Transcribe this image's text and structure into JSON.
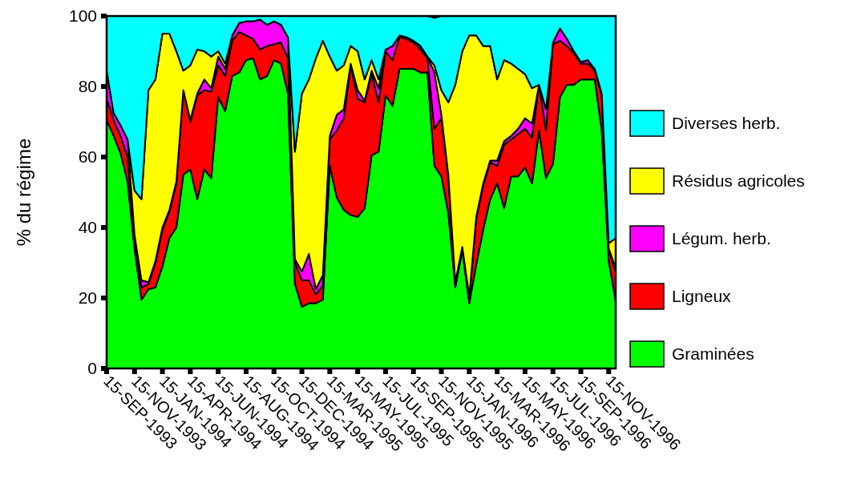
{
  "chart_data": {
    "type": "area",
    "stacked": true,
    "ylabel": "% du régime",
    "ylim": [
      0,
      100
    ],
    "yticks": [
      0,
      20,
      40,
      60,
      80,
      100
    ],
    "grid": false,
    "legend": "right",
    "categories": [
      "15-SEP-1993",
      null,
      null,
      null,
      "15-NOV-1993",
      null,
      null,
      null,
      "15-JAN-1994",
      null,
      null,
      null,
      "15-APR-1994",
      null,
      null,
      null,
      "15-JUN-1994",
      null,
      null,
      null,
      "15-AUG-1994",
      null,
      null,
      null,
      "15-OCT-1994",
      null,
      null,
      null,
      "15-DEC-1994",
      null,
      null,
      null,
      "15-MAR-1995",
      null,
      null,
      null,
      "15-MAY-1995",
      null,
      null,
      null,
      "15-JUL-1995",
      null,
      null,
      null,
      "15-SEP-1995",
      null,
      null,
      null,
      "15-NOV-1995",
      null,
      null,
      null,
      "15-JAN-1996",
      null,
      null,
      null,
      "15-MAR-1996",
      null,
      null,
      null,
      "15-MAY-1996",
      null,
      null,
      null,
      "15-JUL-1996",
      null,
      null,
      null,
      "15-SEP-1996",
      null,
      null,
      null,
      "15-NOV-1996",
      null
    ],
    "series": [
      {
        "name": "Graminées",
        "color": "#00ff00",
        "values": [
          70.5,
          66,
          61,
          53,
          34,
          19.5,
          22.5,
          23,
          29,
          37,
          40,
          55,
          56.5,
          48,
          56.5,
          54,
          77,
          73,
          83,
          84,
          87.5,
          88,
          82,
          83,
          87.5,
          86.5,
          78,
          24,
          17.5,
          18.5,
          18.5,
          19.5,
          57.5,
          48.5,
          45,
          43.5,
          43,
          45.5,
          60.5,
          61.5,
          77.5,
          74.5,
          85,
          85,
          85,
          84,
          84,
          57.5,
          54.5,
          44,
          23,
          33.5,
          18.5,
          29.5,
          39.5,
          48,
          52.5,
          45.5,
          54.5,
          54.5,
          57,
          52.5,
          67.5,
          54,
          58,
          77,
          80.5,
          80.5,
          82,
          82,
          82,
          67.5,
          30.5,
          19
        ]
      },
      {
        "name": "Ligneux",
        "color": "#ff0000",
        "values": [
          6,
          4.5,
          5,
          7,
          3,
          3.5,
          1.5,
          7,
          10.5,
          7.5,
          12.5,
          24,
          13.5,
          29.5,
          22.5,
          24.5,
          9,
          10,
          10,
          11.5,
          7,
          5.5,
          8.5,
          8.5,
          4.5,
          6,
          10,
          6,
          7.5,
          6.5,
          2.5,
          4,
          7.5,
          19,
          26,
          42.5,
          33.5,
          30,
          23,
          14,
          12.5,
          13,
          9,
          8.5,
          7.5,
          6.5,
          4,
          10.5,
          16.5,
          10,
          1,
          0.5,
          1.5,
          13,
          12.5,
          10.5,
          5,
          18,
          10.5,
          12,
          11,
          13,
          13,
          13.5,
          34,
          16,
          11,
          9,
          4.5,
          4.5,
          2.5,
          10,
          3,
          8.5
        ]
      },
      {
        "name": "Légum. herb.",
        "color": "#ff00ff",
        "values": [
          8,
          2,
          3,
          5,
          1,
          2,
          0.5,
          0.5,
          0.5,
          0.5,
          0.5,
          0,
          0.5,
          0.5,
          3,
          1,
          2.5,
          2,
          1.5,
          2.5,
          4,
          5,
          8.5,
          6,
          6.5,
          5,
          6,
          1,
          2.5,
          7.5,
          1.5,
          3,
          1,
          4.5,
          2.5,
          0.5,
          2.5,
          0.5,
          1,
          4,
          0.5,
          4,
          0.5,
          0.5,
          0.5,
          1,
          0.5,
          16,
          1,
          1,
          0.5,
          0.5,
          0.5,
          0.5,
          0.5,
          0.5,
          1.5,
          1,
          1,
          1.5,
          3,
          4,
          0,
          6,
          0.5,
          3.5,
          2,
          0.5,
          0.5,
          1,
          0.5,
          0.5,
          0.5,
          1
        ]
      },
      {
        "name": "Résidus agricoles",
        "color": "#ffff00",
        "values": [
          0,
          0,
          0,
          0,
          12.5,
          23,
          54.5,
          51.5,
          55,
          50,
          37,
          5.5,
          15.5,
          12.5,
          8,
          9,
          1.5,
          1.5,
          0,
          0,
          0,
          0,
          0,
          0,
          0,
          0,
          0,
          30.5,
          50.5,
          49.5,
          65.5,
          66.5,
          22.5,
          12.5,
          12.5,
          5,
          11,
          6,
          3,
          2.5,
          0,
          0,
          0,
          0,
          0,
          0,
          0,
          2,
          7,
          20.5,
          56,
          55.5,
          74,
          51.5,
          39,
          32.5,
          23,
          23,
          20.5,
          17,
          12.5,
          10,
          0,
          0,
          0,
          0,
          0,
          0,
          0,
          0,
          0,
          0,
          1.5,
          8.5
        ]
      },
      {
        "name": "Diverses herb.",
        "color": "#00ffff",
        "values": [
          15.5,
          27.5,
          31,
          35,
          49.5,
          52,
          21,
          18,
          5,
          5,
          10,
          15.5,
          14,
          9.5,
          10,
          11.5,
          10,
          13.5,
          5.5,
          2,
          1.5,
          1.5,
          1,
          2.5,
          1.5,
          2.5,
          6,
          38.5,
          22,
          18,
          12,
          7,
          11.5,
          15.5,
          14,
          8.5,
          10,
          18,
          12.5,
          18,
          9.5,
          8.5,
          5.5,
          6,
          7,
          8.5,
          11.5,
          13.5,
          21,
          24.5,
          19.5,
          10,
          5.5,
          5.5,
          8.5,
          8.5,
          18,
          12.5,
          13.5,
          15,
          16.5,
          20.5,
          19.5,
          26.5,
          7.5,
          3.5,
          6.5,
          10,
          13,
          12.5,
          15,
          22,
          64.5,
          63
        ]
      }
    ]
  }
}
